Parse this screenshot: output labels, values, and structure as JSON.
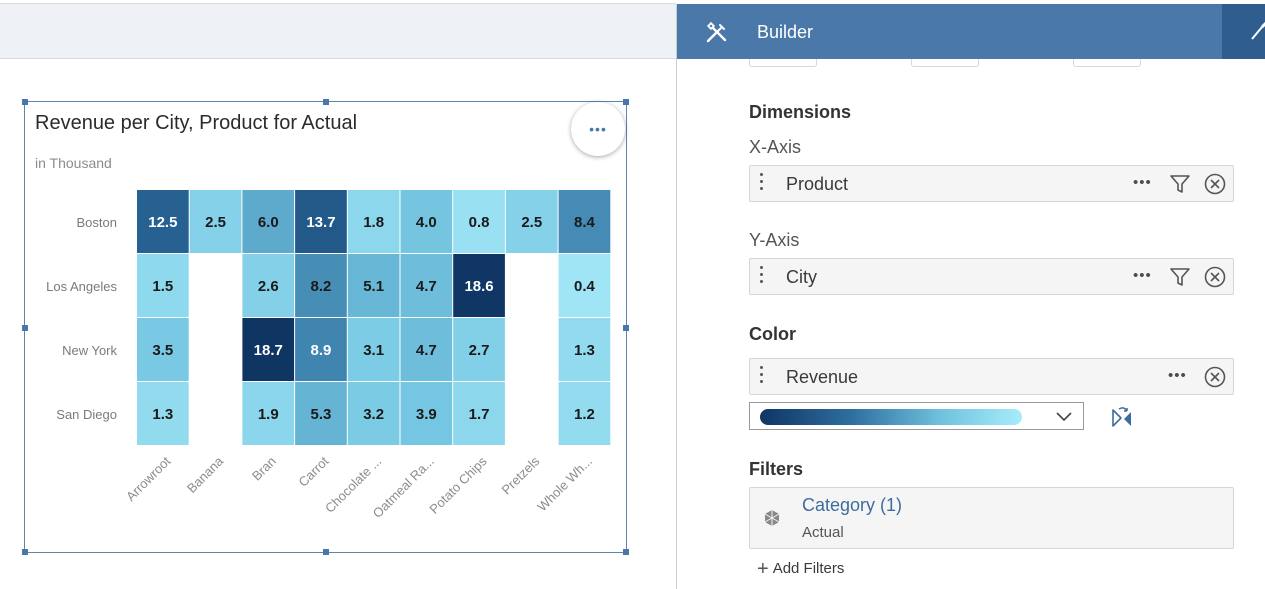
{
  "chart_data": {
    "type": "heatmap",
    "title": "Revenue per City, Product for Actual",
    "subtitle": "in Thousand",
    "x_categories": [
      "Arrowroot",
      "Banana",
      "Bran",
      "Carrot",
      "Chocolate ...",
      "Oatmeal Ra...",
      "Potato Chips",
      "Pretzels",
      "Whole Wh..."
    ],
    "y_categories": [
      "Boston",
      "Los Angeles",
      "New York",
      "San Diego"
    ],
    "values": [
      [
        12.5,
        2.5,
        6.0,
        13.7,
        1.8,
        4.0,
        0.8,
        2.5,
        8.4
      ],
      [
        1.5,
        null,
        2.6,
        8.2,
        5.1,
        4.7,
        18.6,
        null,
        0.4
      ],
      [
        3.5,
        null,
        18.7,
        8.9,
        3.1,
        4.7,
        2.7,
        null,
        1.3
      ],
      [
        1.3,
        null,
        1.9,
        5.3,
        3.2,
        3.9,
        1.7,
        null,
        1.2
      ]
    ],
    "value_labels": [
      [
        "12.5",
        "2.5",
        "6.0",
        "13.7",
        "1.8",
        "4.0",
        "0.8",
        "2.5",
        "8.4"
      ],
      [
        "1.5",
        "",
        "2.6",
        "8.2",
        "5.1",
        "4.7",
        "18.6",
        "",
        "0.4"
      ],
      [
        "3.5",
        "",
        "18.7",
        "8.9",
        "3.1",
        "4.7",
        "2.7",
        "",
        "1.3"
      ],
      [
        "1.3",
        "",
        "1.9",
        "5.3",
        "3.2",
        "3.9",
        "1.7",
        "",
        "1.2"
      ]
    ],
    "color_scale": [
      "#a8ecfa",
      "#72c3e0",
      "#2e6f9f",
      "#0f3563"
    ],
    "legend": "none"
  },
  "chart_widget": {
    "title": "Revenue per City, Product for Actual",
    "subtitle": "in Thousand",
    "more_label": "•••"
  },
  "builder": {
    "title": "Builder",
    "dimensions_title": "Dimensions",
    "x_axis_label": "X-Axis",
    "x_axis_value": "Product",
    "y_axis_label": "Y-Axis",
    "y_axis_value": "City",
    "color_title": "Color",
    "color_value": "Revenue",
    "more_label": "•••",
    "filters_title": "Filters",
    "filter_name": "Category (1)",
    "filter_value": "Actual",
    "add_filters_label": "Add Filters",
    "icons": {
      "header": "tools-icon",
      "filter": "funnel-icon",
      "remove": "circle-x-icon",
      "reverse": "swap-colors-icon",
      "category": "cube-icon"
    },
    "colors": {
      "header": "#4a78a8",
      "header_dark": "#2f5e8e",
      "link": "#3d6d9e"
    }
  }
}
